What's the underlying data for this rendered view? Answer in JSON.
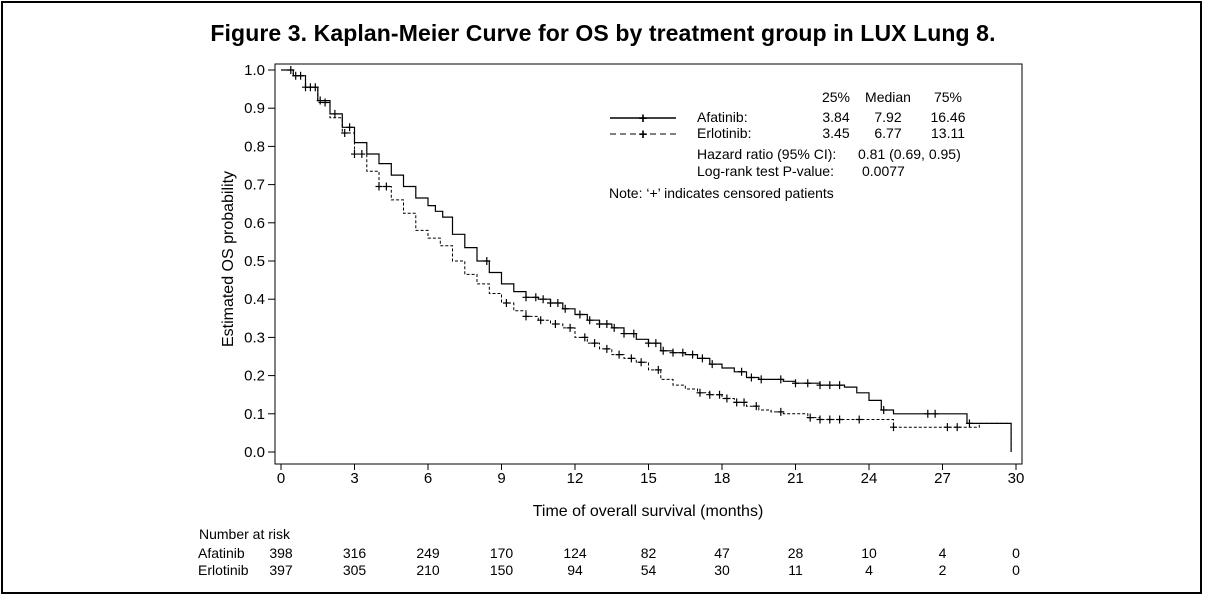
{
  "title": "Figure 3. Kaplan-Meier Curve for OS by treatment group in LUX Lung 8.",
  "chart_data": {
    "type": "line",
    "title": "Figure 3. Kaplan-Meier Curve for OS by treatment group in LUX Lung 8.",
    "xlabel": "Time of overall survival (months)",
    "ylabel": "Estimated OS probability",
    "xlim": [
      0,
      30
    ],
    "ylim": [
      0,
      1
    ],
    "xticks": [
      "0",
      "3",
      "6",
      "9",
      "12",
      "15",
      "18",
      "21",
      "24",
      "27",
      "30"
    ],
    "yticks": [
      "0.0",
      "0.1",
      "0.2",
      "0.3",
      "0.4",
      "0.5",
      "0.6",
      "0.7",
      "0.8",
      "0.9",
      "1.0"
    ],
    "grid": false,
    "legend": "top-right",
    "series": [
      {
        "name": "Afatinib",
        "style": "solid",
        "color": "#000000",
        "x": [
          0,
          0.5,
          1,
          1.5,
          2,
          2.5,
          3,
          3.5,
          4,
          4.5,
          5,
          5.5,
          6,
          6.3,
          6.6,
          7,
          7.5,
          8,
          8.5,
          9,
          9.5,
          10,
          10.5,
          11,
          11.5,
          12,
          12.5,
          13,
          13.5,
          14,
          14.5,
          15,
          15.5,
          16,
          16.5,
          17,
          17.5,
          18,
          18.5,
          19,
          19.5,
          20,
          20.5,
          21,
          21.5,
          22,
          22.5,
          23,
          23.5,
          24,
          24.5,
          25,
          26,
          27,
          28,
          28.5,
          29,
          29.8
        ],
        "y": [
          1.0,
          0.985,
          0.955,
          0.92,
          0.885,
          0.85,
          0.81,
          0.78,
          0.755,
          0.725,
          0.695,
          0.665,
          0.645,
          0.63,
          0.615,
          0.57,
          0.535,
          0.5,
          0.47,
          0.44,
          0.42,
          0.405,
          0.4,
          0.39,
          0.375,
          0.36,
          0.345,
          0.335,
          0.325,
          0.31,
          0.295,
          0.285,
          0.265,
          0.26,
          0.255,
          0.245,
          0.23,
          0.22,
          0.21,
          0.195,
          0.19,
          0.19,
          0.185,
          0.18,
          0.18,
          0.175,
          0.175,
          0.17,
          0.155,
          0.135,
          0.11,
          0.1,
          0.1,
          0.1,
          0.075,
          0.075,
          0.075,
          0.0
        ],
        "censored_x": [
          0.4,
          0.8,
          1.2,
          1.6,
          2.2,
          2.8,
          8.4,
          10,
          10.4,
          10.7,
          11,
          11.3,
          11.6,
          12.2,
          12.6,
          13,
          13.3,
          13.6,
          14,
          14.4,
          15,
          15.3,
          15.6,
          16,
          16.4,
          16.8,
          17.2,
          17.6,
          18.8,
          19.2,
          19.6,
          20.4,
          21,
          21.5,
          22,
          22.4,
          22.8,
          24.6,
          26.4,
          26.7,
          28.1
        ]
      },
      {
        "name": "Erlotinib",
        "style": "dashed",
        "color": "#000000",
        "x": [
          0,
          0.5,
          1,
          1.5,
          2,
          2.5,
          3,
          3.5,
          4,
          4.5,
          5,
          5.5,
          6,
          6.5,
          7,
          7.5,
          8,
          8.5,
          9,
          9.5,
          10,
          10.5,
          11,
          11.5,
          12,
          12.5,
          13,
          13.5,
          14,
          14.5,
          15,
          15.5,
          16,
          16.5,
          17,
          17.5,
          18,
          18.5,
          19,
          19.5,
          20,
          20.5,
          21,
          21.5,
          22,
          22.5,
          23,
          23.5,
          24,
          24.5,
          25,
          26,
          27,
          28,
          28.5,
          29,
          29.8
        ],
        "y": [
          1.0,
          0.985,
          0.955,
          0.915,
          0.875,
          0.835,
          0.78,
          0.735,
          0.695,
          0.66,
          0.625,
          0.58,
          0.56,
          0.54,
          0.5,
          0.465,
          0.44,
          0.415,
          0.39,
          0.37,
          0.355,
          0.345,
          0.335,
          0.325,
          0.3,
          0.285,
          0.27,
          0.255,
          0.245,
          0.235,
          0.215,
          0.19,
          0.175,
          0.165,
          0.155,
          0.15,
          0.14,
          0.13,
          0.12,
          0.11,
          0.105,
          0.1,
          0.1,
          0.09,
          0.085,
          0.085,
          0.085,
          0.085,
          0.085,
          0.085,
          0.065,
          0.065,
          0.065,
          0.065,
          0.075,
          0.075,
          0.0
        ],
        "censored_x": [
          0.6,
          1.0,
          1.4,
          1.8,
          2.6,
          3.0,
          3.3,
          4.0,
          4.3,
          9.2,
          10,
          10.6,
          11.2,
          11.8,
          12.4,
          12.8,
          13.3,
          13.8,
          14.3,
          14.7,
          15.4,
          17.1,
          17.5,
          17.9,
          18.2,
          18.6,
          18.9,
          19.4,
          20.4,
          21.6,
          22,
          22.4,
          22.8,
          23.6,
          25,
          27.2,
          27.6
        ]
      }
    ]
  },
  "legend_table": {
    "headers": [
      "25%",
      "Median",
      "75%"
    ],
    "rows": [
      {
        "label": "Afatinib:",
        "values": [
          "3.84",
          "7.92",
          "16.46"
        ]
      },
      {
        "label": "Erlotinib:",
        "values": [
          "3.45",
          "6.77",
          "13.11"
        ]
      }
    ],
    "hazard_label": "Hazard ratio (95% CI):",
    "hazard_value": "0.81 (0.69, 0.95)",
    "logrank_label": "Log-rank test P-value:",
    "logrank_value": "0.0077",
    "note": "Note: ‘+’ indicates censored patients"
  },
  "risk_table": {
    "heading": "Number at risk",
    "rows": [
      {
        "label": "Afatinib",
        "values": [
          "398",
          "316",
          "249",
          "170",
          "124",
          "82",
          "47",
          "28",
          "10",
          "4",
          "0"
        ]
      },
      {
        "label": "Erlotinib",
        "values": [
          "397",
          "305",
          "210",
          "150",
          "94",
          "54",
          "30",
          "11",
          "4",
          "2",
          "0"
        ]
      }
    ]
  }
}
